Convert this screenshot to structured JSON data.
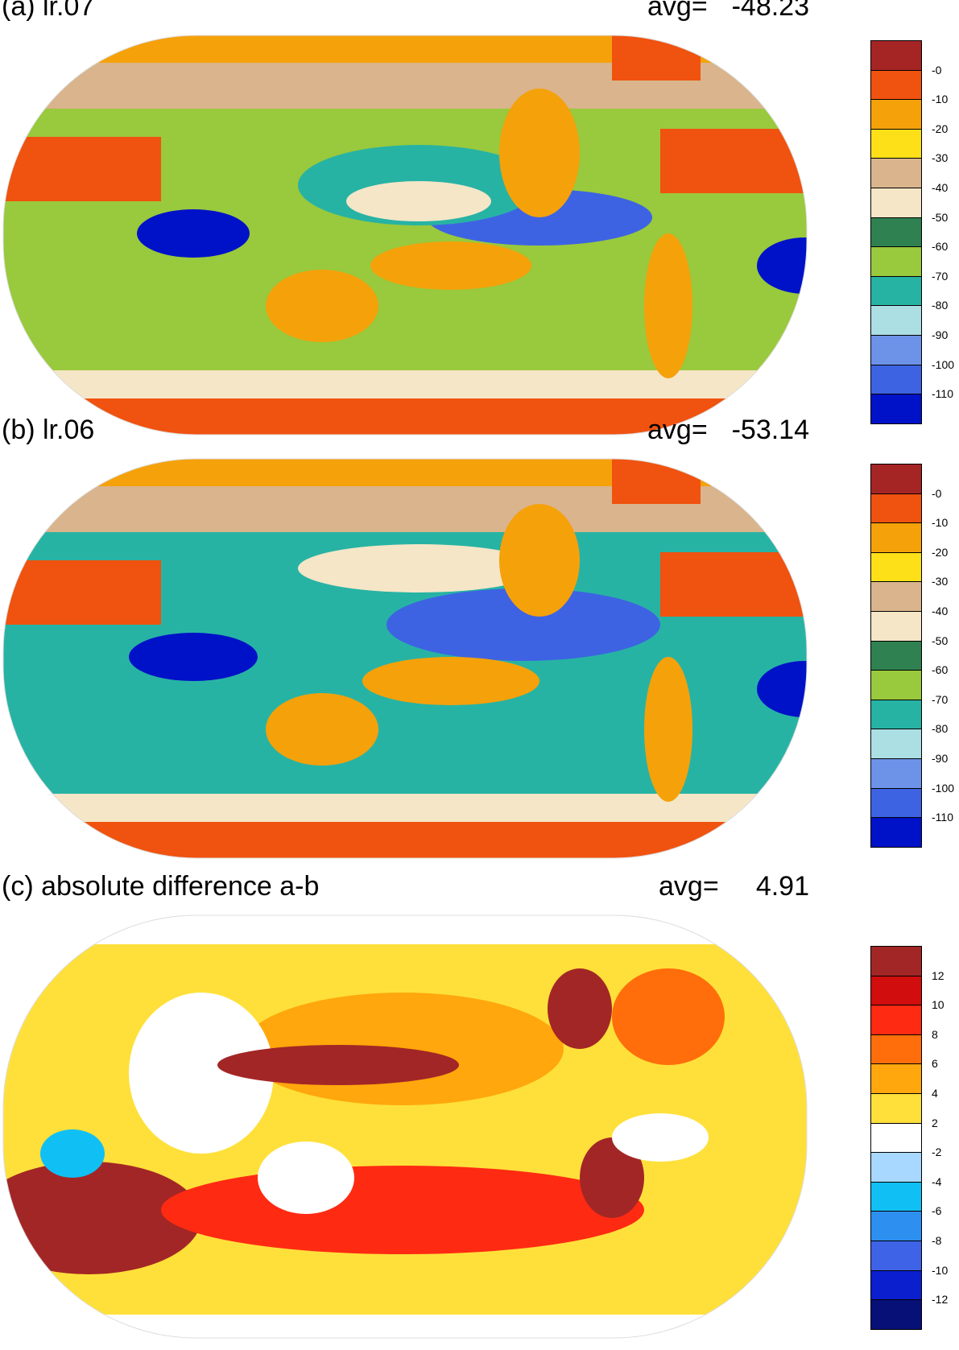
{
  "panels": [
    {
      "title": "(a) lr.07",
      "avg_label": "avg=",
      "avg_value": "-48.23",
      "colorbar": {
        "colors": [
          "#a52525",
          "#f0520f",
          "#f5a10a",
          "#fde018",
          "#d9b48c",
          "#f4e6c7",
          "#2f8151",
          "#99c93c",
          "#27b3a4",
          "#acdfe4",
          "#6d93e8",
          "#3d63e3",
          "#0012c8"
        ],
        "labels": [
          "-0",
          "-10",
          "-20",
          "-30",
          "-40",
          "-50",
          "-60",
          "-70",
          "-80",
          "-90",
          "-100",
          "-110"
        ]
      }
    },
    {
      "title": "(b) lr.06",
      "avg_label": "avg=",
      "avg_value": "-53.14",
      "colorbar": {
        "colors": [
          "#a52525",
          "#f0520f",
          "#f5a10a",
          "#fde018",
          "#d9b48c",
          "#f4e6c7",
          "#2f8151",
          "#99c93c",
          "#27b3a4",
          "#acdfe4",
          "#6d93e8",
          "#3d63e3",
          "#0012c8"
        ],
        "labels": [
          "-0",
          "-10",
          "-20",
          "-30",
          "-40",
          "-50",
          "-60",
          "-70",
          "-80",
          "-90",
          "-100",
          "-110"
        ]
      }
    },
    {
      "title": "(c) absolute difference a-b",
      "avg_label": "avg=",
      "avg_value": "4.91",
      "colorbar": {
        "colors": [
          "#a32626",
          "#d10d0d",
          "#ff2a12",
          "#ff6e0a",
          "#ffa70c",
          "#ffe03a",
          "#ffffff",
          "#a8d8ff",
          "#10c0f5",
          "#2d8ff0",
          "#3f63e6",
          "#0b1fcf",
          "#061077"
        ],
        "labels": [
          "12",
          "10",
          "8",
          "6",
          "4",
          "2",
          "-2",
          "-4",
          "-6",
          "-8",
          "-10",
          "-12"
        ]
      }
    }
  ]
}
